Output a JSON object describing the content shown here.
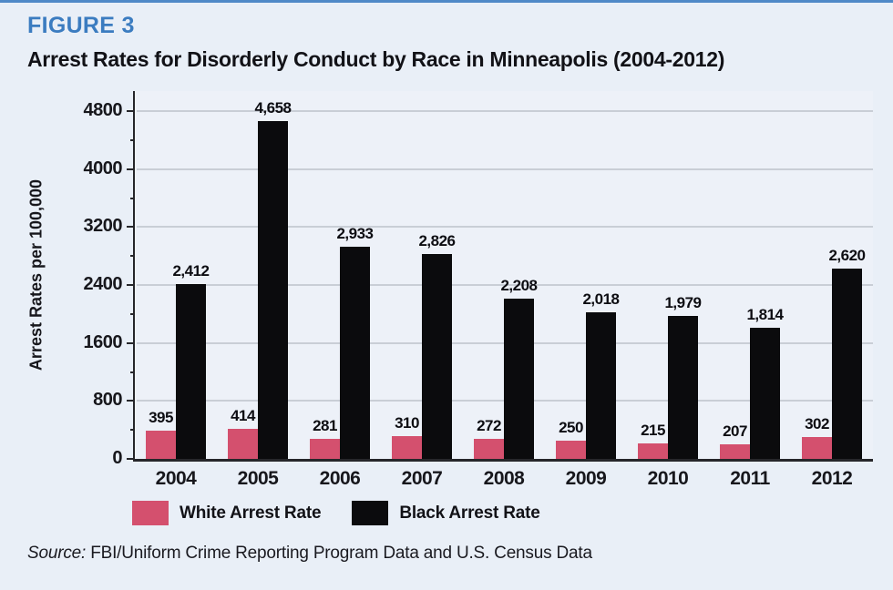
{
  "page": {
    "figure_label": "FIGURE 3",
    "title": "Arrest Rates for Disorderly Conduct by Race in Minneapolis (2004-2012)",
    "source_prefix": "Source:",
    "source_text": "FBI/Uniform Crime Reporting Program Data and U.S. Census Data",
    "accent_blue": "#3b7cc0",
    "background": "#e9eff7"
  },
  "chart_data": {
    "type": "bar",
    "title": "Arrest Rates for Disorderly Conduct by Race in Minneapolis (2004-2012)",
    "ylabel": "Arrest Rates per 100,000",
    "xlabel": "",
    "ylim": [
      0,
      4800
    ],
    "yticks": [
      0,
      800,
      1600,
      2400,
      3200,
      4000,
      4800
    ],
    "minor_tick_step": 400,
    "grid": true,
    "legend_position": "bottom",
    "categories": [
      "2004",
      "2005",
      "2006",
      "2007",
      "2008",
      "2009",
      "2010",
      "2011",
      "2012"
    ],
    "series": [
      {
        "name": "White Arrest Rate",
        "color": "#d4506e",
        "values": [
          395,
          414,
          281,
          310,
          272,
          250,
          215,
          207,
          302
        ],
        "labels": [
          "395",
          "414",
          "281",
          "310",
          "272",
          "250",
          "215",
          "207",
          "302"
        ]
      },
      {
        "name": "Black Arrest Rate",
        "color": "#0b0b0d",
        "values": [
          2412,
          4658,
          2933,
          2826,
          2208,
          2018,
          1979,
          1814,
          2620
        ],
        "labels": [
          "2,412",
          "4,658",
          "2,933",
          "2,826",
          "2,208",
          "2,018",
          "1,979",
          "1,814",
          "2,620"
        ]
      }
    ]
  }
}
